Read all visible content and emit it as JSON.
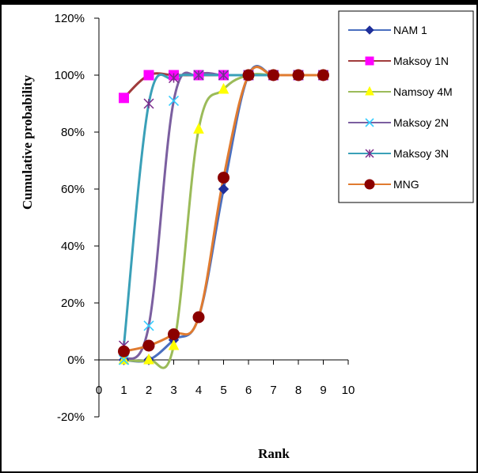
{
  "chart_data": {
    "type": "line",
    "title": "",
    "xlabel": "Rank",
    "ylabel": "Cumulative probability",
    "x": [
      1,
      2,
      3,
      4,
      5,
      6,
      7,
      8,
      9
    ],
    "xlim": [
      0,
      10
    ],
    "ylim": [
      -20,
      120
    ],
    "x_ticks": [
      "0",
      "1",
      "2",
      "3",
      "4",
      "5",
      "6",
      "7",
      "8",
      "9",
      "10"
    ],
    "y_ticks": [
      "-20%",
      "0%",
      "20%",
      "40%",
      "60%",
      "80%",
      "100%",
      "120%"
    ],
    "grid": false,
    "legend_position": "top-right",
    "series": [
      {
        "name": "NAM 1",
        "color": "#1f2f9a",
        "line_color": "#4a6fbf",
        "marker": "diamond",
        "values": [
          0,
          0,
          7,
          15,
          60,
          100,
          100,
          100,
          100
        ]
      },
      {
        "name": "Maksoy  1N",
        "color": "#ff00ff",
        "line_color": "#a03b3b",
        "marker": "square",
        "values": [
          92,
          100,
          100,
          100,
          100,
          100,
          100,
          100,
          100
        ]
      },
      {
        "name": "Namsoy 4M",
        "color": "#ffff00",
        "line_color": "#9bbb59",
        "marker": "triangle",
        "values": [
          0,
          0,
          5,
          81,
          95,
          100,
          100,
          100,
          100
        ]
      },
      {
        "name": "Maksoy 2N",
        "color": "#33ccff",
        "line_color": "#7b5fa0",
        "marker": "x",
        "values": [
          0,
          12,
          91,
          100,
          100,
          100,
          100,
          100,
          100
        ]
      },
      {
        "name": "Maksoy 3N",
        "color": "#7a2a8a",
        "line_color": "#3aa0b8",
        "marker": "star",
        "values": [
          5,
          90,
          99,
          100,
          100,
          100,
          100,
          100,
          100
        ]
      },
      {
        "name": "MNG",
        "color": "#8b0000",
        "line_color": "#e07b30",
        "marker": "circle",
        "values": [
          3,
          5,
          9,
          15,
          64,
          100,
          100,
          100,
          100
        ]
      }
    ]
  }
}
